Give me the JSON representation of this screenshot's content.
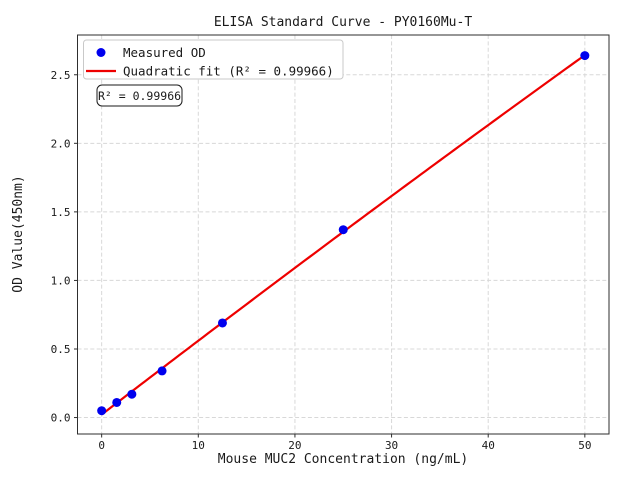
{
  "figure": {
    "title": "ELISA Standard Curve - PY0160Mu-T",
    "annotation": "R² = 0.99966"
  },
  "legend": {
    "position": "upper left",
    "items": [
      {
        "label": "Measured OD",
        "marker": "dot",
        "color": "#0000ee"
      },
      {
        "label": "Quadratic fit (R² = 0.99966)",
        "marker": "line",
        "color": "#ee0000"
      }
    ]
  },
  "chart_data": {
    "type": "scatter",
    "title": "ELISA Standard Curve - PY0160Mu-T",
    "xlabel": "Mouse MUC2 Concentration (ng/mL)",
    "ylabel": "OD Value(450nm)",
    "series": [
      {
        "name": "Measured OD",
        "type": "scatter",
        "color": "#0000ee",
        "x": [
          0,
          1.5625,
          3.125,
          6.25,
          12.5,
          25,
          50
        ],
        "y": [
          0.05,
          0.11,
          0.17,
          0.34,
          0.69,
          1.37,
          2.64
        ]
      },
      {
        "name": "Quadratic fit (R² = 0.99966)",
        "type": "quadratic-fit",
        "color": "#ee0000",
        "r_squared": 0.99966,
        "x_range": [
          0,
          50
        ]
      }
    ],
    "xticks": {
      "values": [
        0,
        10,
        20,
        30,
        40,
        50
      ],
      "labels": [
        "0",
        "10",
        "20",
        "30",
        "40",
        "50"
      ]
    },
    "yticks": {
      "values": [
        0,
        0.5,
        1,
        1.5,
        2,
        2.5
      ],
      "labels": [
        "0.0",
        "0.5",
        "1.0",
        "1.5",
        "2.0",
        "2.5"
      ]
    },
    "xlim": [
      -2.5,
      52.5
    ],
    "ylim": [
      -0.12,
      2.79
    ],
    "grid": true,
    "grid_style": "dashed",
    "legend_position": "upper left"
  },
  "colors": {
    "background": "#ffffff",
    "points": "#0000ee",
    "fit_line": "#ee0000",
    "grid": "#d8d8d8",
    "spine": "#2e2e2e",
    "text": "#1a1a1a",
    "legend_border": "#c9c9c9"
  }
}
